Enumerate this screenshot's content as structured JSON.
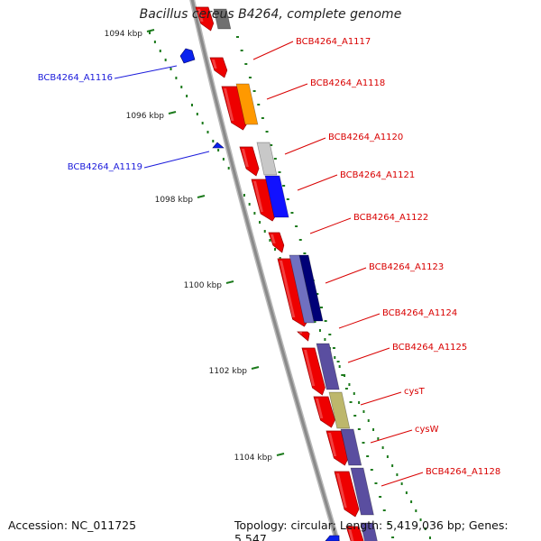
{
  "title": "Bacillus cereus B4264, complete genome",
  "accession": "Accession: NC_011725",
  "summary": "Topology: circular; Length: 5,419,036 bp; Genes: 5,547",
  "ticks": [
    "1094 kbp",
    "1096 kbp",
    "1098 kbp",
    "1100 kbp",
    "1102 kbp",
    "1104 kbp"
  ],
  "genes": [
    {
      "label": "BCB4264_A1116",
      "strand": "minus",
      "color": "#1a1adb"
    },
    {
      "label": "BCB4264_A1117",
      "strand": "plus",
      "color": "#d90000"
    },
    {
      "label": "BCB4264_A1118",
      "strand": "plus",
      "color": "#d90000"
    },
    {
      "label": "BCB4264_A1119",
      "strand": "minus",
      "color": "#1a1adb"
    },
    {
      "label": "BCB4264_A1120",
      "strand": "plus",
      "color": "#d90000"
    },
    {
      "label": "BCB4264_A1121",
      "strand": "plus",
      "color": "#d90000"
    },
    {
      "label": "BCB4264_A1122",
      "strand": "plus",
      "color": "#d90000"
    },
    {
      "label": "BCB4264_A1123",
      "strand": "plus",
      "color": "#d90000"
    },
    {
      "label": "BCB4264_A1124",
      "strand": "plus",
      "color": "#d90000"
    },
    {
      "label": "BCB4264_A1125",
      "strand": "plus",
      "color": "#d90000"
    },
    {
      "label": "cysT",
      "strand": "plus",
      "color": "#d90000"
    },
    {
      "label": "cysW",
      "strand": "plus",
      "color": "#d90000"
    },
    {
      "label": "BCB4264_A1128",
      "strand": "plus",
      "color": "#d90000"
    }
  ],
  "colors": {
    "backbone": "#8a8a8a",
    "plus_gene": "#ee0000",
    "minus_gene": "#0a22ee",
    "tick": "#1c7a1c",
    "cog_orange": "#ff9900",
    "cog_gray": "#c8c8c8",
    "cog_blue": "#1111ff",
    "cog_slate": "#7070c0",
    "cog_navy": "#000077",
    "cog_purple": "#5a4ea0",
    "cog_khaki": "#bdb76b",
    "cog_darkgray": "#707070"
  }
}
